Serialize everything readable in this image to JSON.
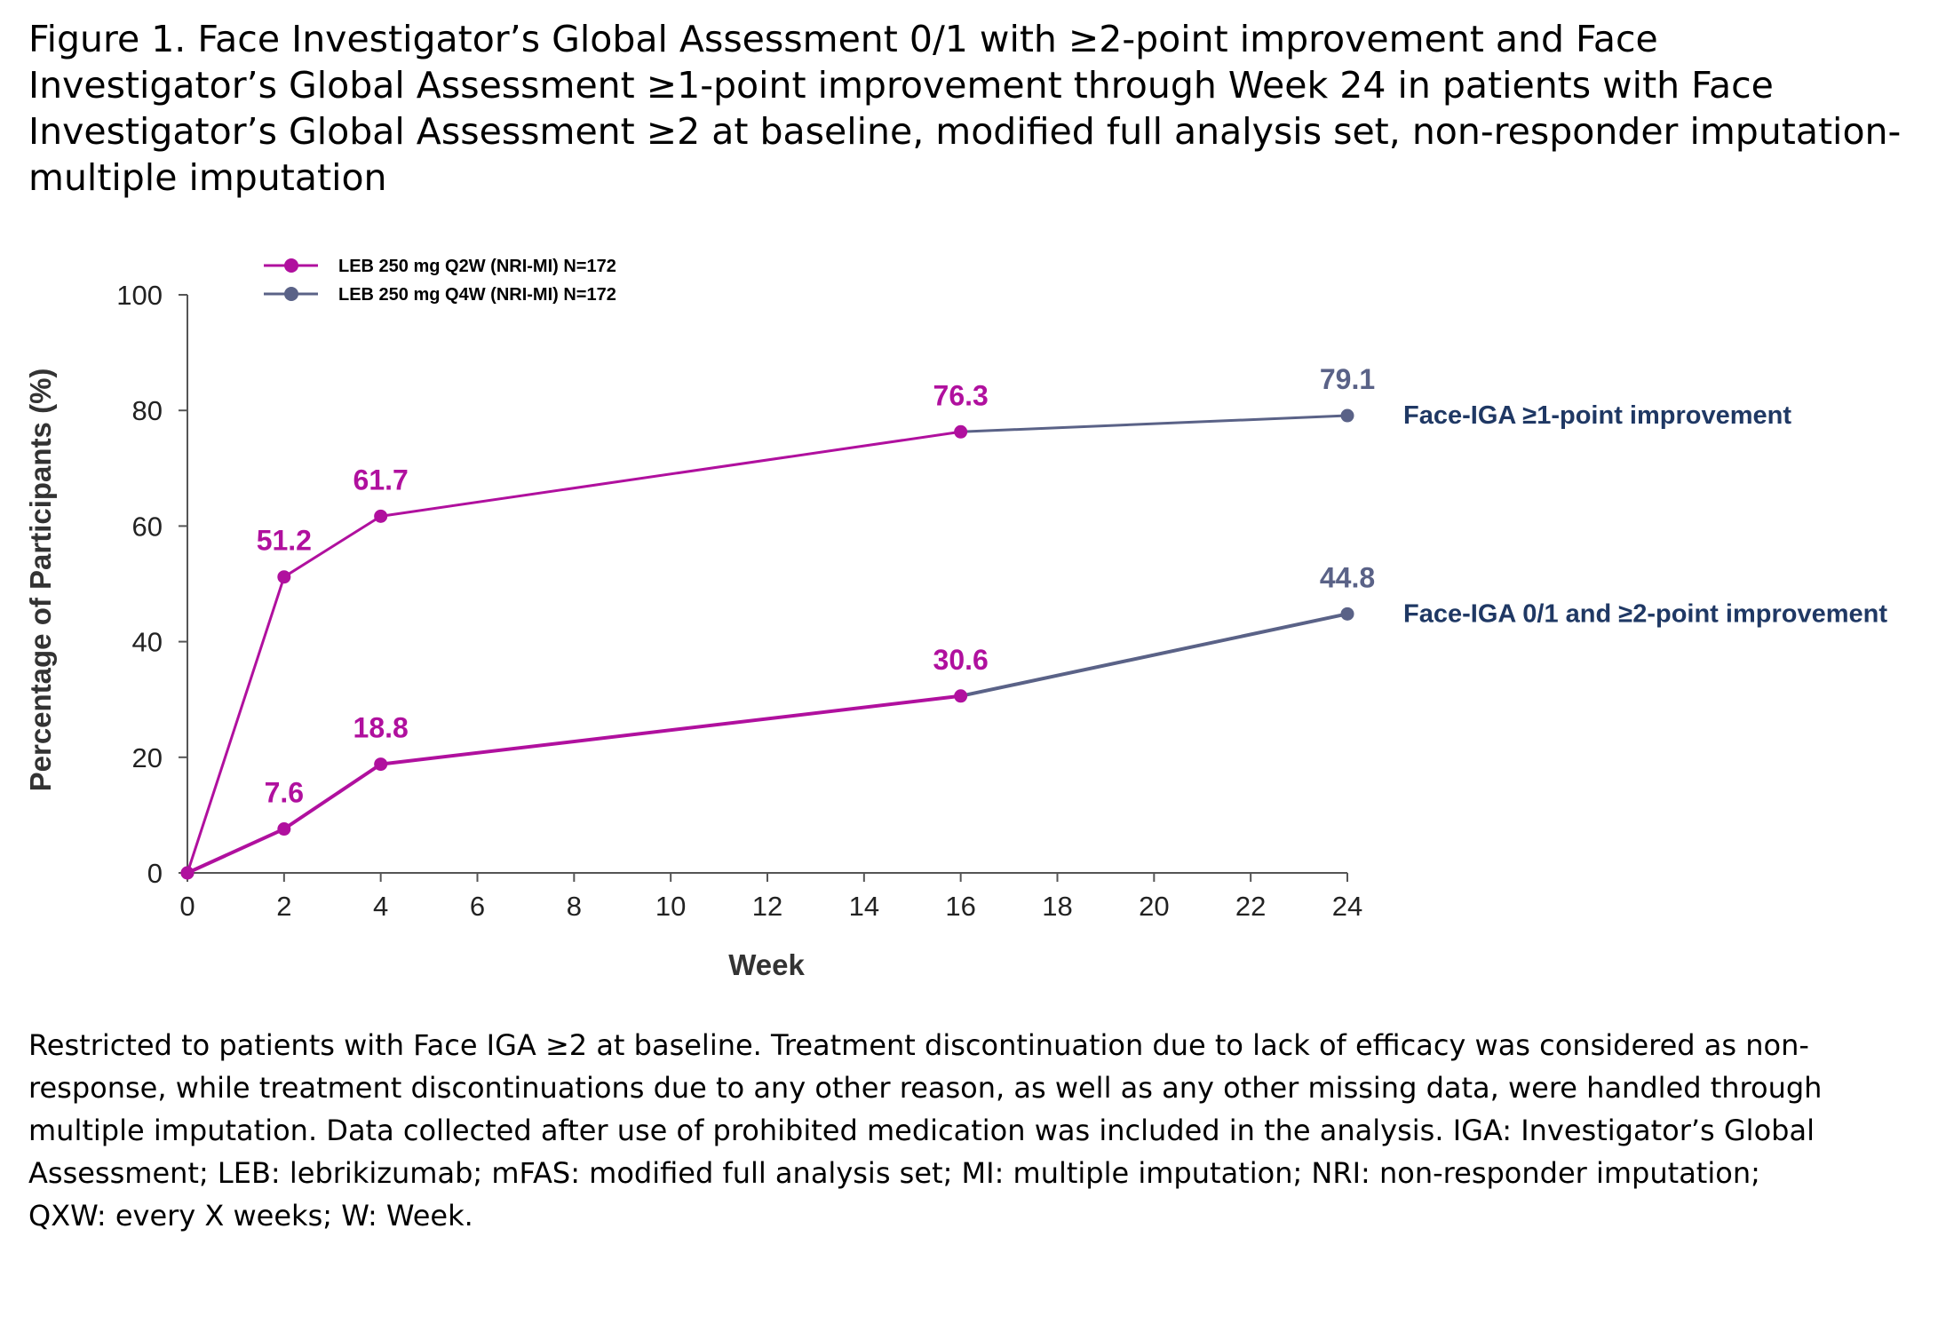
{
  "title": "Figure 1. Face Investigator’s Global Assessment 0/1 with ≥2-point improvement and Face Investigator’s Global Assessment ≥1-point improvement through Week 24 in patients with Face Investigator’s Global Assessment ≥2 at baseline, modified full analysis set, non-responder imputation-multiple imputation",
  "footnote": "Restricted to patients with Face IGA ≥2 at baseline. Treatment discontinuation due to lack of efficacy was considered as non-response, while treatment discontinuations due to any other reason, as well as any other missing data, were handled through multiple imputation. Data collected after use of prohibited medication was included in the analysis. IGA: Investigator’s Global Assessment; LEB: lebrikizumab; mFAS: modified full analysis set; MI: multiple imputation; NRI: non-responder imputation; QXW: every X weeks; W: Week.",
  "colors": {
    "q2w": "#B0109E",
    "q4w": "#5A6287",
    "outcome_label": "#1F3864",
    "axis": "#555555"
  },
  "chart_data": {
    "type": "line",
    "xlabel": "Week",
    "ylabel": "Percentage of Participants (%)",
    "xlim": [
      0,
      24
    ],
    "ylim": [
      0,
      100
    ],
    "xticks": [
      0,
      2,
      4,
      6,
      8,
      10,
      12,
      14,
      16,
      18,
      20,
      22,
      24
    ],
    "yticks": [
      0,
      20,
      40,
      60,
      80,
      100
    ],
    "grid": false,
    "legend_position": "top-left",
    "legend": [
      {
        "label": "LEB 250 mg Q2W (NRI-MI) N=172",
        "color": "#B0109E"
      },
      {
        "label": "LEB 250 mg Q4W (NRI-MI) N=172",
        "color": "#5A6287"
      }
    ],
    "outcomes": [
      {
        "label": "Face-IGA ≥1-point improvement",
        "points": [
          {
            "x": 0,
            "y": 0,
            "series": "q2w"
          },
          {
            "x": 2,
            "y": 51.2,
            "series": "q2w",
            "label": "51.2"
          },
          {
            "x": 4,
            "y": 61.7,
            "series": "q2w",
            "label": "61.7"
          },
          {
            "x": 16,
            "y": 76.3,
            "series": "q2w",
            "label": "76.3"
          },
          {
            "x": 24,
            "y": 79.1,
            "series": "q4w",
            "label": "79.1"
          }
        ]
      },
      {
        "label": "Face-IGA 0/1 and ≥2-point improvement",
        "points": [
          {
            "x": 0,
            "y": 0,
            "series": "q2w"
          },
          {
            "x": 2,
            "y": 7.6,
            "series": "q2w",
            "label": "7.6"
          },
          {
            "x": 4,
            "y": 18.8,
            "series": "q2w",
            "label": "18.8"
          },
          {
            "x": 16,
            "y": 30.6,
            "series": "q2w",
            "label": "30.6"
          },
          {
            "x": 24,
            "y": 44.8,
            "series": "q4w",
            "label": "44.8"
          }
        ]
      }
    ]
  }
}
